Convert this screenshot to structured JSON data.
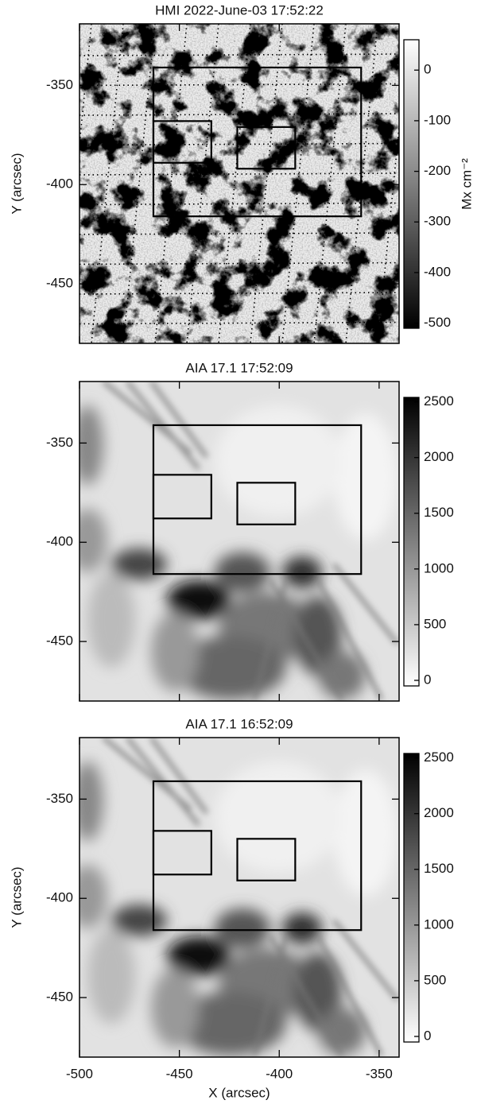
{
  "chart_data": [
    {
      "type": "image",
      "title": "HMI 2022-June-03 17:52:22",
      "ylabel": "Y (arcsec)",
      "xlim": [
        -500,
        -340
      ],
      "ylim": [
        -480,
        -319
      ],
      "xticks": [
        -500,
        -450,
        -400,
        -350
      ],
      "yticks": [
        -450,
        -400,
        -350
      ],
      "boxes": [
        {
          "x": [
            -463,
            -359
          ],
          "y": [
            -416,
            -341
          ]
        },
        {
          "x": [
            -463,
            -434
          ],
          "y": [
            -389,
            -368
          ]
        },
        {
          "x": [
            -421,
            -392
          ],
          "y": [
            -392,
            -371
          ]
        }
      ],
      "colorbar": {
        "lim": [
          -510,
          60
        ],
        "ticks": [
          -500,
          -400,
          -300,
          -200,
          -100,
          0
        ],
        "label": "Mx cm⁻²",
        "colormap": "gray"
      }
    },
    {
      "type": "image",
      "title": "AIA 17.1 17:52:09",
      "xlim": [
        -500,
        -340
      ],
      "ylim": [
        -480,
        -319
      ],
      "xticks": [
        -500,
        -450,
        -400,
        -350
      ],
      "yticks": [
        -450,
        -400,
        -350
      ],
      "boxes": [
        {
          "x": [
            -463,
            -359
          ],
          "y": [
            -416,
            -341
          ]
        },
        {
          "x": [
            -463,
            -434
          ],
          "y": [
            -388,
            -366
          ]
        },
        {
          "x": [
            -421,
            -392
          ],
          "y": [
            -391,
            -370
          ]
        }
      ],
      "colorbar": {
        "lim": [
          -50,
          2540
        ],
        "ticks": [
          0,
          500,
          1000,
          1500,
          2000,
          2500
        ],
        "colormap": "gray_r"
      }
    },
    {
      "type": "image",
      "title": "AIA 17.1 16:52:09",
      "xlabel": "X (arcsec)",
      "ylabel": "Y (arcsec)",
      "xlim": [
        -500,
        -340
      ],
      "ylim": [
        -480,
        -319
      ],
      "xticks": [
        -500,
        -450,
        -400,
        -350
      ],
      "yticks": [
        -450,
        -400,
        -350
      ],
      "boxes": [
        {
          "x": [
            -463,
            -359
          ],
          "y": [
            -416,
            -341
          ]
        },
        {
          "x": [
            -463,
            -434
          ],
          "y": [
            -388,
            -366
          ]
        },
        {
          "x": [
            -421,
            -392
          ],
          "y": [
            -391,
            -370
          ]
        }
      ],
      "colorbar": {
        "lim": [
          -50,
          2540
        ],
        "ticks": [
          0,
          500,
          1000,
          1500,
          2000,
          2500
        ],
        "colormap": "gray_r"
      }
    }
  ]
}
